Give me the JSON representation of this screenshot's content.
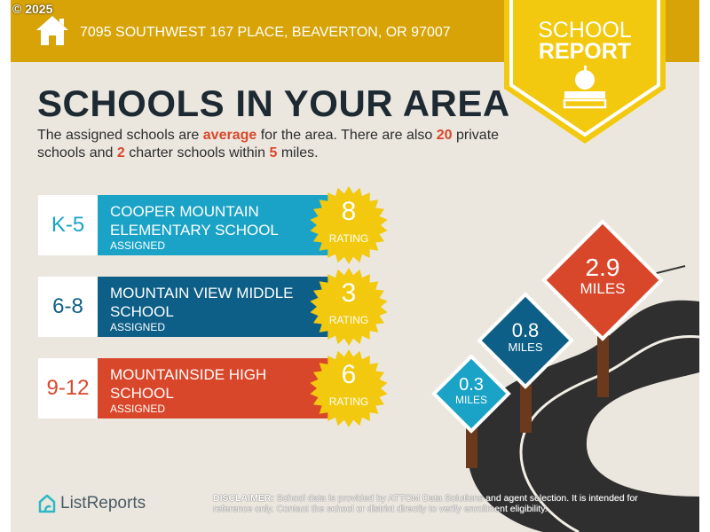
{
  "copyright": "© 2025",
  "header": {
    "address": "7095 SOUTHWEST 167 PLACE, BEAVERTON, OR 97007",
    "badge_line1": "SCHOOL",
    "badge_line2": "REPORT"
  },
  "title": "SCHOOLS IN YOUR AREA",
  "summary": {
    "p1": "The assigned schools are ",
    "quality": "average",
    "p2": " for the area. There are also ",
    "private": "20",
    "p3": " private schools and ",
    "charter": "2",
    "p4": " charter schools within ",
    "radius": "5",
    "p5": " miles."
  },
  "schools": [
    {
      "grade": "K-5",
      "name": "Cooper Mountain Elementary School",
      "status": "ASSIGNED",
      "rating": "8",
      "rating_label": "RATING",
      "color": "#1aa3c6"
    },
    {
      "grade": "6-8",
      "name": "Mountain View Middle School",
      "status": "ASSIGNED",
      "rating": "3",
      "rating_label": "RATING",
      "color": "#0d5f87"
    },
    {
      "grade": "9-12",
      "name": "Mountainside High School",
      "status": "ASSIGNED",
      "rating": "6",
      "rating_label": "RATING",
      "color": "#d9472b"
    }
  ],
  "distances": [
    {
      "value": "0.3",
      "unit": "MILES",
      "color": "#1aa3c6"
    },
    {
      "value": "0.8",
      "unit": "MILES",
      "color": "#0d5f87"
    },
    {
      "value": "2.9",
      "unit": "MILES",
      "color": "#d9472b"
    }
  ],
  "footer": {
    "brand": "ListReports",
    "disclaimer_label": "DISCLAIMER:",
    "disclaimer": " School data is provided by ATTOM Data Solutions and agent selection. It is intended for reference only. Contact the school or district directly to verify enrollment eligibility."
  },
  "colors": {
    "header": "#d7a306",
    "badge": "#f2c90e",
    "background": "#ebe7df",
    "star": "#f2c90e"
  }
}
